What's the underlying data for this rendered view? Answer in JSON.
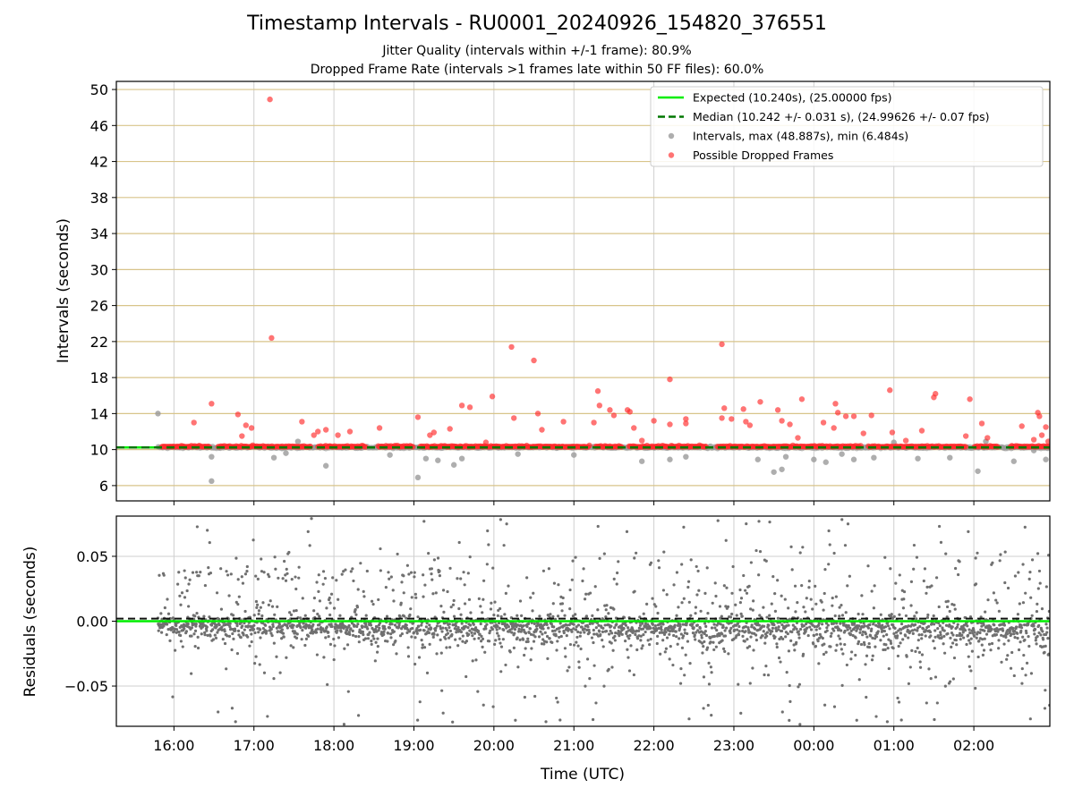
{
  "figure": {
    "title": "Timestamp Intervals - RU0001_20240926_154820_376551",
    "subtitle_jitter": "Jitter Quality (intervals within +/-1 frame): 80.9%",
    "subtitle_dropped": "Dropped Frame Rate (intervals >1 frames late within 50 FF files): 60.0%"
  },
  "colors": {
    "expected": "#00ee00",
    "median": "#007700",
    "intervals": "#9a9a9a",
    "dropped": "#ff2a2a",
    "residuals": "#707070",
    "hgrid_top": "#d8c48a",
    "grid": "#cfcfcf"
  },
  "chart_data": [
    {
      "type": "scatter",
      "ylabel": "Intervals (seconds)",
      "ylim": [
        4.3,
        50.9
      ],
      "yticks": [
        6,
        10,
        14,
        18,
        22,
        26,
        30,
        34,
        38,
        42,
        46,
        50
      ],
      "ytick_labels": [
        "6",
        "10",
        "14",
        "18",
        "22",
        "26",
        "30",
        "34",
        "38",
        "42",
        "46",
        "50"
      ],
      "xlim_hours": [
        15.28,
        26.95
      ],
      "grid": "on",
      "legend_position": "top-right",
      "legend": [
        {
          "key": "expected",
          "label": "Expected (10.240s), (25.00000 fps)"
        },
        {
          "key": "median",
          "label": "Median (10.242 +/- 0.031 s), (24.99626 +/- 0.07 fps)"
        },
        {
          "key": "intervals",
          "label": "Intervals, max (48.887s), min (6.484s)"
        },
        {
          "key": "dropped",
          "label": "Possible Dropped Frames"
        }
      ],
      "expected_value": 10.24,
      "median_value": 10.242,
      "time_range_hours": [
        15.8,
        26.95
      ],
      "interval_outliers": [
        [
          15.8,
          14.0
        ],
        [
          16.47,
          9.2
        ],
        [
          16.47,
          6.5
        ],
        [
          17.25,
          9.1
        ],
        [
          17.4,
          9.6
        ],
        [
          17.55,
          10.9
        ],
        [
          17.9,
          8.2
        ],
        [
          18.7,
          9.4
        ],
        [
          19.05,
          6.9
        ],
        [
          19.3,
          8.8
        ],
        [
          19.5,
          8.3
        ],
        [
          19.6,
          9.0
        ],
        [
          20.3,
          9.5
        ],
        [
          21.0,
          9.4
        ],
        [
          21.85,
          8.7
        ],
        [
          22.2,
          8.9
        ],
        [
          22.4,
          9.2
        ],
        [
          23.3,
          8.9
        ],
        [
          23.5,
          7.5
        ],
        [
          23.6,
          7.8
        ],
        [
          23.65,
          9.2
        ],
        [
          24.0,
          8.9
        ],
        [
          24.15,
          8.6
        ],
        [
          24.35,
          9.5
        ],
        [
          24.5,
          8.9
        ],
        [
          24.75,
          9.1
        ],
        [
          25.0,
          10.8
        ],
        [
          25.3,
          9.0
        ],
        [
          25.7,
          9.1
        ],
        [
          26.05,
          7.6
        ],
        [
          26.15,
          10.9
        ],
        [
          26.5,
          8.7
        ],
        [
          26.75,
          9.9
        ],
        [
          26.9,
          8.9
        ],
        [
          19.15,
          9.0
        ]
      ],
      "dropped_frames": [
        [
          16.25,
          13.0
        ],
        [
          16.47,
          15.1
        ],
        [
          16.8,
          13.9
        ],
        [
          16.85,
          11.5
        ],
        [
          16.9,
          12.7
        ],
        [
          16.97,
          12.4
        ],
        [
          17.2,
          48.9
        ],
        [
          17.22,
          22.4
        ],
        [
          17.6,
          13.1
        ],
        [
          17.75,
          11.6
        ],
        [
          17.8,
          12.0
        ],
        [
          17.9,
          12.2
        ],
        [
          18.05,
          11.6
        ],
        [
          18.2,
          12.0
        ],
        [
          18.57,
          12.4
        ],
        [
          19.05,
          13.6
        ],
        [
          19.2,
          11.6
        ],
        [
          19.25,
          11.9
        ],
        [
          19.45,
          12.3
        ],
        [
          19.6,
          14.9
        ],
        [
          19.7,
          14.7
        ],
        [
          19.9,
          10.8
        ],
        [
          19.98,
          15.9
        ],
        [
          20.22,
          21.4
        ],
        [
          20.25,
          13.5
        ],
        [
          20.5,
          19.9
        ],
        [
          20.55,
          14.0
        ],
        [
          20.6,
          12.2
        ],
        [
          20.87,
          13.1
        ],
        [
          21.25,
          13.0
        ],
        [
          21.3,
          16.5
        ],
        [
          21.32,
          14.9
        ],
        [
          21.45,
          14.4
        ],
        [
          21.5,
          13.8
        ],
        [
          21.67,
          14.4
        ],
        [
          21.7,
          14.2
        ],
        [
          21.75,
          12.4
        ],
        [
          21.85,
          11.0
        ],
        [
          22.0,
          13.2
        ],
        [
          22.2,
          17.8
        ],
        [
          22.2,
          12.8
        ],
        [
          22.4,
          12.9
        ],
        [
          22.4,
          13.4
        ],
        [
          22.85,
          13.5
        ],
        [
          22.85,
          21.7
        ],
        [
          22.88,
          14.6
        ],
        [
          22.97,
          13.4
        ],
        [
          23.12,
          14.5
        ],
        [
          23.15,
          13.1
        ],
        [
          23.2,
          12.7
        ],
        [
          23.33,
          15.3
        ],
        [
          23.55,
          14.4
        ],
        [
          23.6,
          13.2
        ],
        [
          23.7,
          12.8
        ],
        [
          23.8,
          11.3
        ],
        [
          23.85,
          15.6
        ],
        [
          24.12,
          13.0
        ],
        [
          24.25,
          12.4
        ],
        [
          24.27,
          15.1
        ],
        [
          24.3,
          14.1
        ],
        [
          24.4,
          13.7
        ],
        [
          24.5,
          13.7
        ],
        [
          24.62,
          11.8
        ],
        [
          24.72,
          13.8
        ],
        [
          24.95,
          16.6
        ],
        [
          24.98,
          11.9
        ],
        [
          25.15,
          11.0
        ],
        [
          25.35,
          12.1
        ],
        [
          25.5,
          15.8
        ],
        [
          25.52,
          16.2
        ],
        [
          25.95,
          15.6
        ],
        [
          25.9,
          11.5
        ],
        [
          26.1,
          12.9
        ],
        [
          26.17,
          11.3
        ],
        [
          26.6,
          12.6
        ],
        [
          26.75,
          11.1
        ],
        [
          26.8,
          14.1
        ],
        [
          26.82,
          13.7
        ],
        [
          26.85,
          11.6
        ],
        [
          26.9,
          12.5
        ],
        [
          26.93,
          10.9
        ]
      ]
    },
    {
      "type": "scatter",
      "ylabel": "Residuals (seconds)",
      "xlabel": "Time (UTC)",
      "ylim": [
        -0.081,
        0.081
      ],
      "yticks": [
        -0.05,
        0,
        0.05
      ],
      "ytick_labels": [
        "−0.05",
        "0.00",
        "0.05"
      ],
      "xticks_hours": [
        16,
        17,
        18,
        19,
        20,
        21,
        22,
        23,
        24,
        25,
        26
      ],
      "xtick_labels": [
        "16:00",
        "17:00",
        "18:00",
        "19:00",
        "20:00",
        "21:00",
        "22:00",
        "23:00",
        "00:00",
        "01:00",
        "02:00"
      ],
      "xlim_hours": [
        15.28,
        26.95
      ],
      "grid": "on",
      "expected_residual": 0.0,
      "median_residual": 0.002,
      "residual_range": [
        -0.08,
        0.08
      ]
    }
  ]
}
